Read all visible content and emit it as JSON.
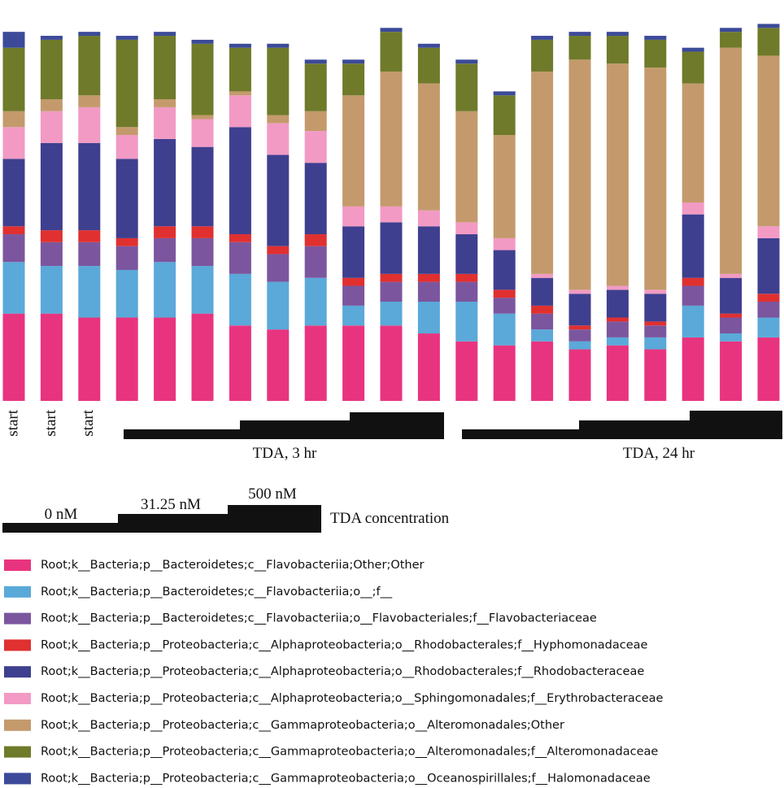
{
  "chart_data": {
    "type": "stacked_bar",
    "categories": [
      "start",
      "start",
      "start",
      null,
      null,
      null,
      null,
      null,
      null,
      null,
      null,
      null,
      null,
      null,
      null,
      null,
      null,
      null,
      null,
      null,
      null
    ],
    "ylim": [
      0,
      100
    ],
    "series": [
      {
        "name": "Root;k__Bacteria;p__Bacteroidetes;c__Flavobacteriia;Other;Other",
        "color": "#e8347f",
        "values": [
          22,
          22,
          21,
          21,
          21,
          22,
          19,
          18,
          19,
          19,
          19,
          17,
          15,
          14,
          15,
          13,
          14,
          13,
          16,
          15,
          16
        ]
      },
      {
        "name": "Root;k__Bacteria;p__Bacteroidetes;c__Flavobacteriia;o__;f__",
        "color": "#5aa9d9",
        "values": [
          13,
          12,
          13,
          12,
          14,
          12,
          13,
          12,
          12,
          5,
          6,
          8,
          10,
          8,
          3,
          2,
          2,
          3,
          8,
          2,
          5
        ]
      },
      {
        "name": "Root;k__Bacteria;p__Bacteroidetes;c__Flavobacteriia;o__Flavobacteriales;f__Flavobacteriaceae",
        "color": "#7b569e",
        "values": [
          7,
          6,
          6,
          6,
          6,
          7,
          8,
          7,
          8,
          5,
          5,
          5,
          5,
          4,
          4,
          3,
          4,
          3,
          5,
          4,
          4
        ]
      },
      {
        "name": "Root;k__Bacteria;p__Proteobacteria;c__Alphaproteobacteria;o__Rhodobacterales;f__Hyphomonadaceae",
        "color": "#e03030",
        "values": [
          2,
          3,
          3,
          2,
          3,
          3,
          2,
          2,
          3,
          2,
          2,
          2,
          2,
          2,
          2,
          1,
          1,
          1,
          2,
          1,
          2
        ]
      },
      {
        "name": "Root;k__Bacteria;p__Proteobacteria;c__Alphaproteobacteria;o__Rhodobacterales;f__Rhodobacteraceae",
        "color": "#3f3f8f",
        "values": [
          17,
          22,
          22,
          20,
          22,
          20,
          27,
          23,
          18,
          13,
          13,
          12,
          10,
          10,
          7,
          8,
          7,
          7,
          16,
          9,
          14
        ]
      },
      {
        "name": "Root;k__Bacteria;p__Proteobacteria;c__Alphaproteobacteria;o__Sphingomonadales;f__Erythrobacteraceae",
        "color": "#f29ac4",
        "values": [
          8,
          8,
          9,
          6,
          8,
          7,
          8,
          8,
          8,
          5,
          4,
          4,
          3,
          3,
          1,
          1,
          1,
          1,
          3,
          1,
          3
        ]
      },
      {
        "name": "Root;k__Bacteria;p__Proteobacteria;c__Gammaproteobacteria;o__Alteromonadales;Other",
        "color": "#c49a6c",
        "values": [
          4,
          3,
          3,
          2,
          2,
          1,
          1,
          2,
          5,
          28,
          34,
          32,
          28,
          26,
          51,
          58,
          56,
          56,
          30,
          57,
          43
        ]
      },
      {
        "name": "Root;k__Bacteria;p__Proteobacteria;c__Gammaproteobacteria;o__Alteromonadales;f__Alteromonadaceae",
        "color": "#6f7a2a",
        "values": [
          16,
          15,
          15,
          22,
          16,
          18,
          11,
          17,
          12,
          8,
          10,
          9,
          12,
          10,
          8,
          6,
          7,
          7,
          8,
          4,
          7
        ]
      },
      {
        "name": "Root;k__Bacteria;p__Proteobacteria;c__Gammaproteobacteria;o__Oceanospirillales;f__Halomonadaceae",
        "color": "#3c4a99",
        "values": [
          4,
          1,
          1,
          1,
          1,
          1,
          1,
          1,
          1,
          1,
          1,
          1,
          1,
          1,
          1,
          1,
          1,
          1,
          1,
          1,
          1
        ]
      }
    ],
    "annotations": [
      "TDA, 3 hr",
      "TDA, 24 hr"
    ],
    "concentration_legend": {
      "title": "TDA concentration",
      "levels": [
        "0 nM",
        "31.25 nM",
        "500 nM"
      ]
    }
  }
}
